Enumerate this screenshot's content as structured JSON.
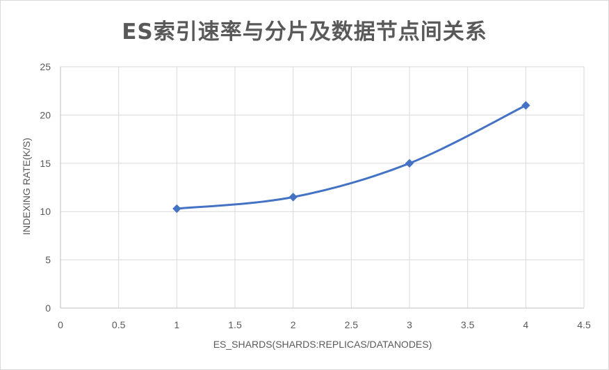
{
  "chart_data": {
    "type": "line",
    "title": "ES索引速率与分片及数据节点间关系",
    "xlabel": "ES_SHARDS(SHARDS:REPLICAS/DATANODES)",
    "ylabel": "INDEXING RATE(K/S)",
    "xlim": [
      0,
      4.5
    ],
    "ylim": [
      0,
      25
    ],
    "x_ticks": [
      "0",
      "0.5",
      "1",
      "1.5",
      "2",
      "2.5",
      "3",
      "3.5",
      "4",
      "4.5"
    ],
    "y_ticks": [
      "0",
      "5",
      "10",
      "15",
      "20",
      "25"
    ],
    "grid": true,
    "smooth": true,
    "series": [
      {
        "x": [
          1,
          2,
          3,
          4
        ],
        "values": [
          10.3,
          11.5,
          15,
          21
        ]
      }
    ],
    "colors": {
      "line": "#4472c4",
      "grid": "#d9d9d9",
      "axis": "#bfbfbf",
      "text": "#595959"
    }
  }
}
